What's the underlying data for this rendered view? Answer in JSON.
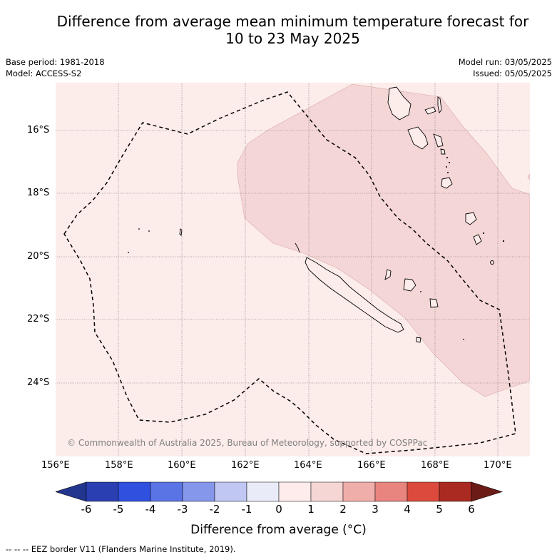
{
  "title": {
    "line1": "Difference from average mean minimum temperature forecast for",
    "line2": "10 to 23 May 2025"
  },
  "meta": {
    "base_period": "Base period: 1981-2018",
    "model": "Model: ACCESS-S2",
    "model_run": "Model run: 03/05/2025",
    "issued": "Issued: 05/05/2025"
  },
  "map": {
    "copyright": "© Commonwealth of Australia 2025, Bureau of Meteorology, supported by COSPPac",
    "latitude_labels": [
      "16°S",
      "18°S",
      "20°S",
      "22°S",
      "24°S"
    ],
    "longitude_labels": [
      "156°E",
      "158°E",
      "160°E",
      "162°E",
      "164°E",
      "166°E",
      "168°E",
      "170°E"
    ],
    "background_category": "0 to 1",
    "anomaly_region_category": "1 to 2",
    "land_features": [
      "New Caledonia",
      "Loyalty Islands",
      "Vanuatu"
    ]
  },
  "colorbar": {
    "ticks": [
      "-6",
      "-5",
      "-4",
      "-3",
      "-2",
      "-1",
      "0",
      "1",
      "2",
      "3",
      "4",
      "5",
      "6"
    ],
    "colors": [
      "#22368f",
      "#2a40b2",
      "#3050e0",
      "#5a74e6",
      "#8597ea",
      "#c0c7f2",
      "#e9ecf8",
      "#fdeceb",
      "#f6d5d5",
      "#f0aeaa",
      "#e8857f",
      "#dc4a3e",
      "#aa2a22",
      "#6c1c17"
    ],
    "label": "Difference from average (°C)"
  },
  "footer": {
    "legend_line": "--  --  -- EEZ border V11 (Flanders Marine Institute, 2019)."
  }
}
